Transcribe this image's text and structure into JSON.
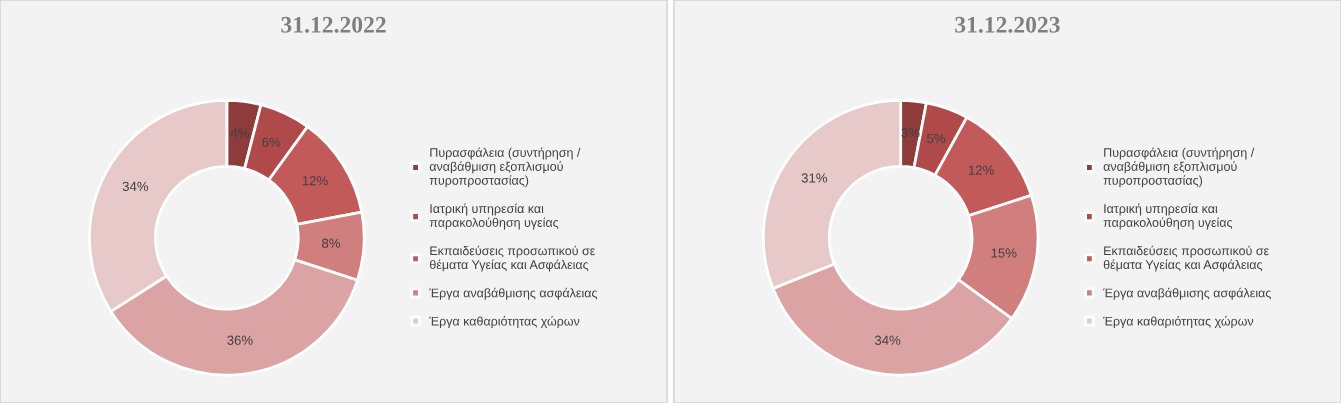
{
  "chart_data": [
    {
      "type": "donut",
      "title": "31.12.2022",
      "categories": [
        "Πυρασφάλεια (συντήρηση / αναβάθμιση εξοπλισμού πυροπροστασίας)",
        "Ιατρική υπηρεσία και παρακολούθηση υγείας",
        "Εκπαιδεύσεις προσωπικού σε θέματα Υγείας και Ασφάλειας",
        "Έργα αναβάθμισης ασφάλειας",
        null,
        "Έργα καθαριότητας χώρων"
      ],
      "values": [
        4,
        6,
        12,
        8,
        36,
        34
      ],
      "value_labels": [
        "4%",
        "6%",
        "12%",
        "8%",
        "36%",
        "34%"
      ],
      "colors": [
        "#8e3b3b",
        "#b04a4a",
        "#c25a5a",
        "#d07e7e",
        "#dba3a3",
        "#e8c9ca"
      ],
      "legend": "right"
    },
    {
      "type": "donut",
      "title": "31.12.2023",
      "categories": [
        "Πυρασφάλεια (συντήρηση / αναβάθμιση εξοπλισμού πυροπροστασίας)",
        "Ιατρική υπηρεσία και παρακολούθηση υγείας",
        "Εκπαιδεύσεις προσωπικού σε θέματα Υγείας και Ασφάλειας",
        "Έργα αναβάθμισης ασφάλειας",
        null,
        "Έργα καθαριότητας χώρων"
      ],
      "values": [
        3,
        5,
        12,
        15,
        34,
        31
      ],
      "value_labels": [
        "3%",
        "5%",
        "12%",
        "15%",
        "34%",
        "31%"
      ],
      "colors": [
        "#8e3b3b",
        "#b04a4a",
        "#c25a5a",
        "#d07e7e",
        "#dba3a3",
        "#e8c9ca"
      ],
      "legend": "right"
    }
  ]
}
